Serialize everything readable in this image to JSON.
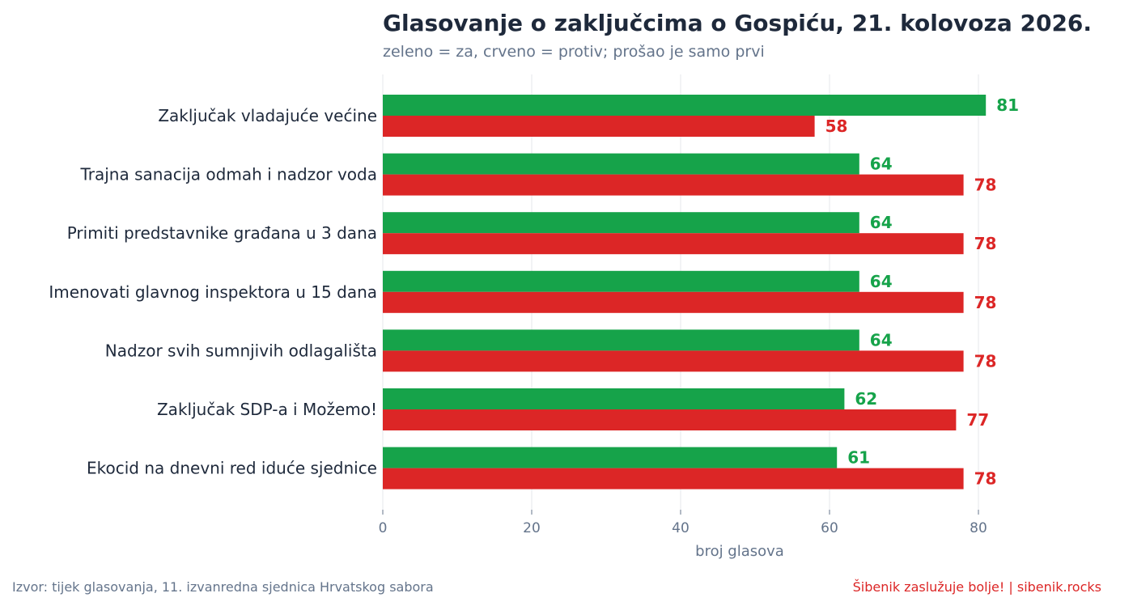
{
  "chart_data": {
    "type": "bar",
    "orientation": "horizontal",
    "title": "Glasovanje o zaključcima o Gospiću, 21. kolovoza 2026.",
    "subtitle": "zeleno = za, crveno = protiv; prošao je samo prvi",
    "xlabel": "broj glasova",
    "ylabel": "",
    "xlim": [
      0,
      85
    ],
    "xticks": [
      0,
      20,
      40,
      60,
      80
    ],
    "grid": true,
    "categories": [
      "Zaključak vladajuće većine",
      "Trajna sanacija odmah i nadzor voda",
      "Primiti predstavnike građana u 3 dana",
      "Imenovati glavnog inspektora u 15 dana",
      "Nadzor svih sumnjivih odlagališta",
      "Zaključak SDP-a i Možemo!",
      "Ekocid na dnevni red iduće sjednice"
    ],
    "series": [
      {
        "color": "#16a34a",
        "values": [
          81,
          64,
          64,
          64,
          64,
          62,
          61
        ]
      },
      {
        "color": "#dc2626",
        "values": [
          58,
          78,
          78,
          78,
          78,
          77,
          78
        ]
      }
    ]
  },
  "footer": {
    "source": "Izvor: tijek glasovanja, 11. izvanredna sjednica Hrvatskog sabora",
    "brand": "Šibenik zaslužuje bolje!  |  sibenik.rocks"
  }
}
